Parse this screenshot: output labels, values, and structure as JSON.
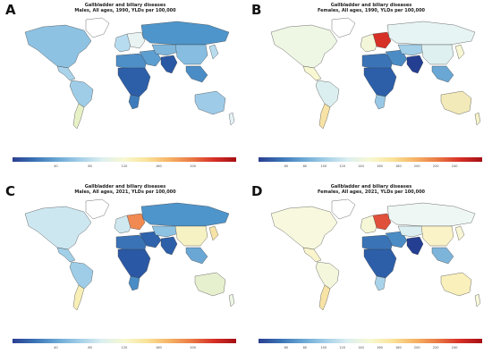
{
  "panels": [
    {
      "letter": "A",
      "title_line1": "Gallbladder and biliary diseases",
      "title_line2": "Males, All ages, 1990, YLDs per 100,000",
      "ticks": [
        "40",
        "80",
        "120",
        "160",
        "200"
      ],
      "colors": {
        "north_america": "#8ec2e3",
        "central_america": "#a9d3ea",
        "south_america": "#9fcde8",
        "argentina": "#e7f1c6",
        "greenland": "#ffffff",
        "western_europe": "#b8dcef",
        "eastern_europe": "#e9f3f2",
        "russia": "#4e95cb",
        "middle_east": "#5d9ed0",
        "north_africa": "#4f8fc7",
        "sub_saharan_africa": "#2d5fa9",
        "south_africa": "#3e7bbb",
        "central_asia": "#7fb6dc",
        "south_asia": "#2b58a4",
        "china": "#86bde0",
        "southeast_asia": "#4a8cc5",
        "japan_korea": "#b9dbee",
        "australia": "#9ecbe8",
        "new_zealand": "#e5f3f7"
      }
    },
    {
      "letter": "B",
      "title_line1": "Gallbladder and biliary diseases",
      "title_line2": "Females, All ages, 1990, YLDs per 100,000",
      "ticks": [
        "60",
        "80",
        "100",
        "120",
        "140",
        "160",
        "180",
        "200",
        "220",
        "240"
      ],
      "colors": {
        "north_america": "#eef6e4",
        "central_america": "#f7f8d1",
        "south_america": "#dceff0",
        "argentina": "#f7e3a6",
        "greenland": "#ffffff",
        "western_europe": "#f3f6d8",
        "eastern_europe": "#d73027",
        "russia": "#e6f4f3",
        "middle_east": "#4b8cc5",
        "north_africa": "#3b74b6",
        "sub_saharan_africa": "#2d5fa9",
        "south_africa": "#98c8e5",
        "central_asia": "#a3cfe8",
        "south_asia": "#243f91",
        "china": "#dff0f1",
        "southeast_asia": "#6aa7d4",
        "japan_korea": "#f7f7d4",
        "australia": "#f2eab8",
        "new_zealand": "#f5f2c9"
      }
    },
    {
      "letter": "C",
      "title_line1": "Gallbladder and biliary diseases",
      "title_line2": "Males, All ages, 2021, YLDs per 100,000",
      "ticks": [
        "40",
        "80",
        "120",
        "160",
        "200"
      ],
      "colors": {
        "north_america": "#cde7f1",
        "central_america": "#a2cfe8",
        "south_america": "#9fcde8",
        "argentina": "#f8efb7",
        "greenland": "#ffffff",
        "western_europe": "#cfe8ef",
        "eastern_europe": "#f08a52",
        "russia": "#4e95cb",
        "middle_east": "#2f63ab",
        "north_africa": "#3b74b6",
        "sub_saharan_africa": "#2b58a4",
        "south_africa": "#4a8cc5",
        "central_asia": "#8ec2e3",
        "south_asia": "#2d5fa9",
        "china": "#f7f2c4",
        "southeast_asia": "#6aa7d4",
        "japan_korea": "#f7e3a6",
        "australia": "#e6f0cf",
        "new_zealand": "#eef6e4"
      }
    },
    {
      "letter": "D",
      "title_line1": "Gallbladder and biliary diseases",
      "title_line2": "Females, All ages, 2021, YLDs per 100,000",
      "ticks": [
        "60",
        "80",
        "100",
        "120",
        "140",
        "160",
        "180",
        "200",
        "220",
        "240"
      ],
      "colors": {
        "north_america": "#f7f8de",
        "central_america": "#f9f4cc",
        "south_america": "#f4f7dc",
        "argentina": "#f7e3a6",
        "greenland": "#ffffff",
        "western_europe": "#f6f7d6",
        "eastern_europe": "#e0503a",
        "russia": "#eef7f3",
        "middle_east": "#4b8cc5",
        "north_africa": "#3b74b6",
        "sub_saharan_africa": "#2d5fa9",
        "south_africa": "#a9d3ea",
        "central_asia": "#dceff0",
        "south_asia": "#243f91",
        "china": "#fbf3c8",
        "southeast_asia": "#7db4da",
        "japan_korea": "#f8f6d4",
        "australia": "#f9f0bc",
        "new_zealand": "#f7f7da"
      }
    }
  ]
}
